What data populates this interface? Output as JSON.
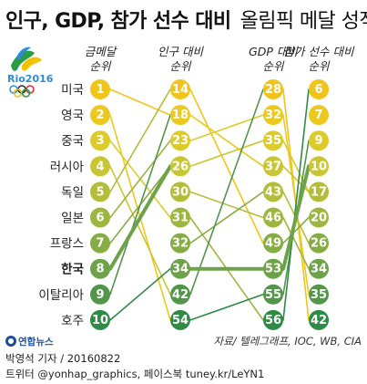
{
  "title": {
    "bold_part": "인구, GDP, 참가 선수 대비",
    "regular_part": "올림픽 메달 성적"
  },
  "logo": {
    "text": "Rio2016",
    "colors": [
      "#2e8bd8",
      "#f2c200",
      "#2a2a2a",
      "#2a9c44",
      "#e0292e"
    ]
  },
  "chart_data": {
    "type": "slopegraph",
    "columns": [
      {
        "key": "medal",
        "label": [
          "금메달",
          "순위"
        ]
      },
      {
        "key": "population",
        "label": [
          "인구 대비",
          "순위"
        ]
      },
      {
        "key": "gdp",
        "label": [
          "GDP 대비",
          "순위"
        ]
      },
      {
        "key": "athletes",
        "label": [
          "참가 선수 대비",
          "순위"
        ]
      }
    ],
    "countries": [
      {
        "name": "미국",
        "medal": 1,
        "population": 14,
        "gdp": 28,
        "athletes": 6
      },
      {
        "name": "영국",
        "medal": 2,
        "population": 18,
        "gdp": 32,
        "athletes": 7
      },
      {
        "name": "중국",
        "medal": 3,
        "population": 23,
        "gdp": 35,
        "athletes": 9
      },
      {
        "name": "러시아",
        "medal": 4,
        "population": 26,
        "gdp": 37,
        "athletes": 10
      },
      {
        "name": "독일",
        "medal": 5,
        "population": 30,
        "gdp": 43,
        "athletes": 17
      },
      {
        "name": "일본",
        "medal": 6,
        "population": 31,
        "gdp": 46,
        "athletes": 20
      },
      {
        "name": "프랑스",
        "medal": 7,
        "population": 32,
        "gdp": 49,
        "athletes": 26
      },
      {
        "name": "한국",
        "medal": 8,
        "population": 34,
        "gdp": 53,
        "athletes": 34
      },
      {
        "name": "이탈리아",
        "medal": 9,
        "population": 42,
        "gdp": 55,
        "athletes": 35
      },
      {
        "name": "호주",
        "medal": 10,
        "population": 54,
        "gdp": 56,
        "athletes": 42
      }
    ],
    "links": {
      "medal_population": [
        [
          1,
          18
        ],
        [
          2,
          54
        ],
        [
          3,
          31
        ],
        [
          4,
          42
        ],
        [
          5,
          14
        ],
        [
          6,
          23
        ],
        [
          7,
          26
        ],
        [
          8,
          26
        ],
        [
          9,
          18
        ],
        [
          10,
          34
        ]
      ],
      "population_gdp": [
        [
          14,
          49
        ],
        [
          18,
          37
        ],
        [
          23,
          32
        ],
        [
          26,
          35
        ],
        [
          30,
          46
        ],
        [
          31,
          56
        ],
        [
          32,
          43
        ],
        [
          34,
          53
        ],
        [
          42,
          28
        ],
        [
          54,
          55
        ]
      ],
      "gdp_athletes": [
        [
          28,
          42
        ],
        [
          32,
          35
        ],
        [
          35,
          17
        ],
        [
          37,
          17
        ],
        [
          43,
          26
        ],
        [
          46,
          34
        ],
        [
          49,
          20
        ],
        [
          53,
          10
        ],
        [
          55,
          9
        ],
        [
          56,
          6
        ]
      ]
    },
    "highlight_country": "한국",
    "node_colors": [
      "#f0c419",
      "#ebc91f",
      "#dccb2a",
      "#c9c633",
      "#b3bd3a",
      "#9db541",
      "#86ac45",
      "#6ea249",
      "#53964b",
      "#2f8a46"
    ],
    "node_text_colors": [
      "#ffffff",
      "#ffffff",
      "#ffffff",
      "#ffffff",
      "#ffffff",
      "#ffffff",
      "#ffffff",
      "#ffffff",
      "#ffffff",
      "#ffffff"
    ],
    "source": "자료/ 텔레그래프, IOC, WB, CIA"
  },
  "footer": {
    "agency": "연합뉴스",
    "byline": "박영석 기자 / 20160822",
    "social": "트위터 @yonhap_graphics, 페이스북 tuney.kr/LeYN1"
  }
}
